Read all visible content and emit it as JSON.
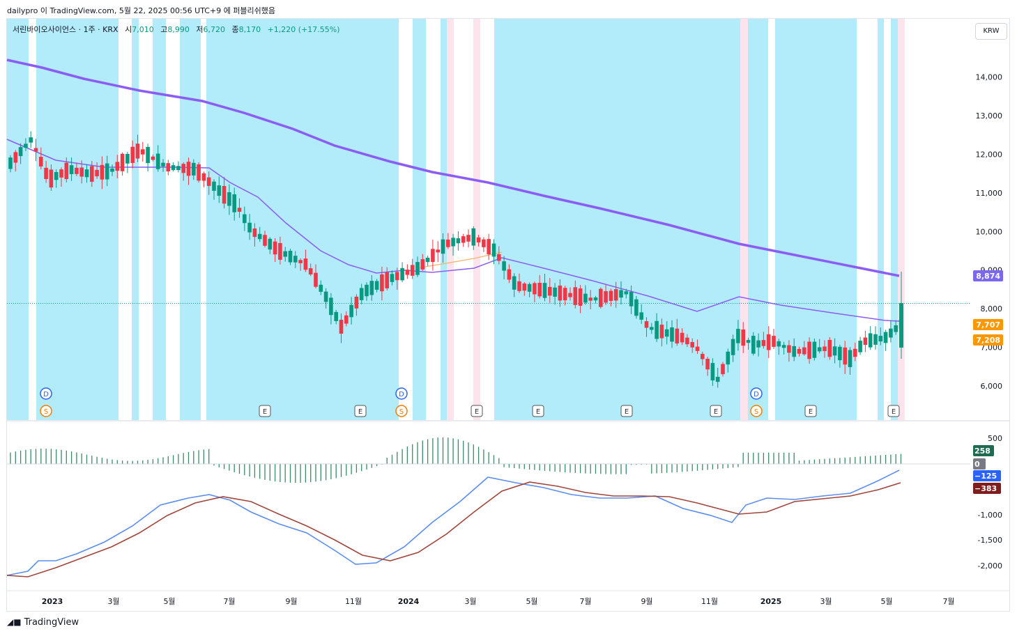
{
  "header": {
    "publish_text": "dailypro 이 TradingView.com, 5월 22, 2025 00:56 UTC+9 에 퍼블리쉬했음"
  },
  "legend": {
    "symbol": "서린바이오사이언스 · 1주 · KRX",
    "open_label": "시",
    "open_value": "7,010",
    "high_label": "고",
    "high_value": "8,990",
    "low_label": "저",
    "low_value": "6,720",
    "close_label": "종",
    "close_value": "8,170",
    "change": "+1,220 (+17.55%)"
  },
  "currency_button": "KRW",
  "price_axis": {
    "ticks": [
      "14,000",
      "13,000",
      "12,000",
      "11,000",
      "10,000",
      "9,000",
      "8,000",
      "7,000",
      "6,000"
    ],
    "labels": [
      {
        "text": "8,874",
        "color": "#7b68ee"
      },
      {
        "text": "7,707",
        "color": "#ff9800"
      },
      {
        "text": "7,208",
        "color": "#ff9800"
      }
    ]
  },
  "macd_axis": {
    "ticks": [
      "500",
      "-1,000",
      "-1,500",
      "-2,000"
    ],
    "labels": [
      {
        "text": "258",
        "color": "#1e6b52"
      },
      {
        "text": "0",
        "color": "#787b86"
      },
      {
        "text": "−125",
        "color": "#2962ff"
      },
      {
        "text": "−383",
        "color": "#7f1d1d"
      }
    ]
  },
  "time_axis": [
    "2023",
    "3월",
    "5월",
    "7월",
    "9월",
    "11월",
    "2024",
    "3월",
    "5월",
    "7월",
    "9월",
    "11월",
    "2025",
    "3월",
    "5월",
    "7월"
  ],
  "event_markers": {
    "dividend": "D",
    "split": "S",
    "earnings": "E"
  },
  "colors": {
    "up": "#089981",
    "down": "#f23645",
    "bg_blue": "#b2ebf9",
    "bg_pink": "#fce4ec",
    "ma_long": "#8b5cf6",
    "macd": "#5b8def",
    "signal": "#a0453a",
    "hist": "#3a8a6a"
  },
  "footer": {
    "brand": "TradingView"
  }
}
